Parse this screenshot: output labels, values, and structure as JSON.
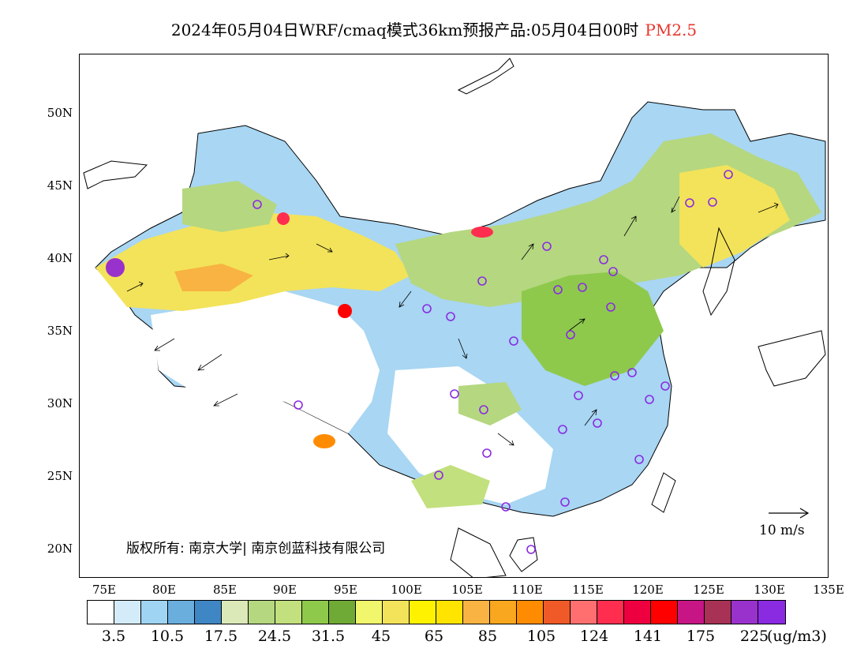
{
  "title": {
    "main": "2024年05月04日WRF/cmaq模式36km预报产品:05月04日00时",
    "pollutant": "PM2.5"
  },
  "axes": {
    "lat_labels": [
      "50N",
      "45N",
      "40N",
      "35N",
      "30N",
      "25N",
      "20N"
    ],
    "lon_labels": [
      "75E",
      "80E",
      "85E",
      "90E",
      "95E",
      "100E",
      "105E",
      "110E",
      "115E",
      "120E",
      "125E",
      "130E",
      "135E"
    ]
  },
  "copyright": "版权所有: 南京大学| 南京创蓝科技有限公司",
  "wind_reference": {
    "label": "10 m/s"
  },
  "legend": {
    "colors": [
      "#ffffff",
      "#d4ecfa",
      "#9fd4f3",
      "#6aaede",
      "#3f86c4",
      "#dbe9b8",
      "#b5d780",
      "#c2e07e",
      "#8ec94c",
      "#70aa36",
      "#f1f76c",
      "#f3e35a",
      "#fff200",
      "#ffe400",
      "#f8b342",
      "#f9a71f",
      "#ff8c00",
      "#f05a28",
      "#ff6f6f",
      "#ff2e4f",
      "#ee0040",
      "#ff0000",
      "#c71585",
      "#a83255",
      "#9932cc",
      "#8a2be2"
    ],
    "labels": [
      "3.5",
      "10.5",
      "17.5",
      "24.5",
      "31.5",
      "45",
      "65",
      "85",
      "105",
      "124",
      "141",
      "175",
      "225"
    ],
    "unit": "(ug/m3)"
  }
}
